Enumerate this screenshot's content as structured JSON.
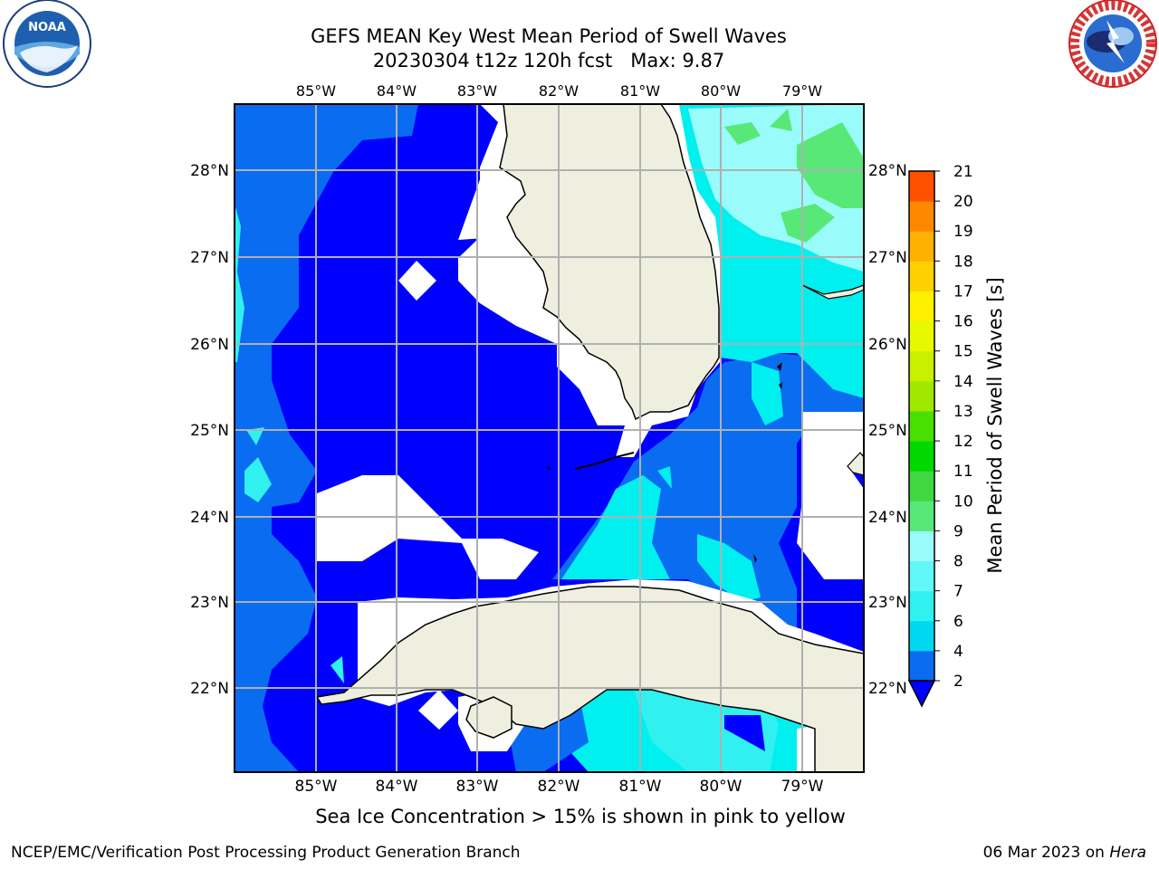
{
  "header": {
    "title_line1": "GEFS MEAN Key West Mean Period of Swell Waves",
    "title_line2_run": "20230304 t12z 120h fcst",
    "title_line2_max": "Max: 9.87"
  },
  "logos": {
    "noaa_text": "NOAA",
    "nws_ring_text": "NATIONAL WEATHER SERVICE"
  },
  "map": {
    "lon_ticks": [
      "85°W",
      "84°W",
      "83°W",
      "82°W",
      "81°W",
      "80°W",
      "79°W"
    ],
    "lat_ticks": [
      "28°N",
      "27°N",
      "26°N",
      "25°N",
      "24°N",
      "23°N",
      "22°N"
    ],
    "region": "Florida Straits / Gulf of Mexico"
  },
  "colorbar": {
    "label": "Mean Period of Swell Waves [s]",
    "ticks": [
      "2",
      "4",
      "6",
      "7",
      "8",
      "9",
      "10",
      "11",
      "12",
      "13",
      "14",
      "15",
      "16",
      "17",
      "18",
      "19",
      "20",
      "21"
    ],
    "colors": [
      "#0a6cf0",
      "#00d8f0",
      "#30f0f0",
      "#60f8f8",
      "#9afcfa",
      "#58e878",
      "#40d840",
      "#00d800",
      "#48e000",
      "#a0e800",
      "#c8f000",
      "#e8f800",
      "#fff000",
      "#ffd000",
      "#ffb000",
      "#ff8800",
      "#ff5000",
      "#ff2000",
      "#ff0000"
    ],
    "extend_color": "#0000ff"
  },
  "note": "Sea Ice Concentration > 15% is shown in pink to yellow",
  "footer": {
    "left": "NCEP/EMC/Verification Post Processing Product Generation Branch",
    "right_date": "06 Mar 2023 on",
    "right_host": "Hera"
  },
  "chart_data": {
    "type": "heatmap",
    "title": "GEFS MEAN Key West Mean Period of Swell Waves",
    "subtitle": "20230304 t12z 120h fcst   Max: 9.87",
    "variable": "Mean Period of Swell Waves [s]",
    "max": 9.87,
    "lon_range": [
      -86,
      -78.3
    ],
    "lat_range": [
      21,
      28.8
    ],
    "colorbar_levels": [
      2,
      4,
      6,
      7,
      8,
      9,
      10,
      11,
      12,
      13,
      14,
      15,
      16,
      17,
      18,
      19,
      20,
      21
    ],
    "grid": true
  }
}
